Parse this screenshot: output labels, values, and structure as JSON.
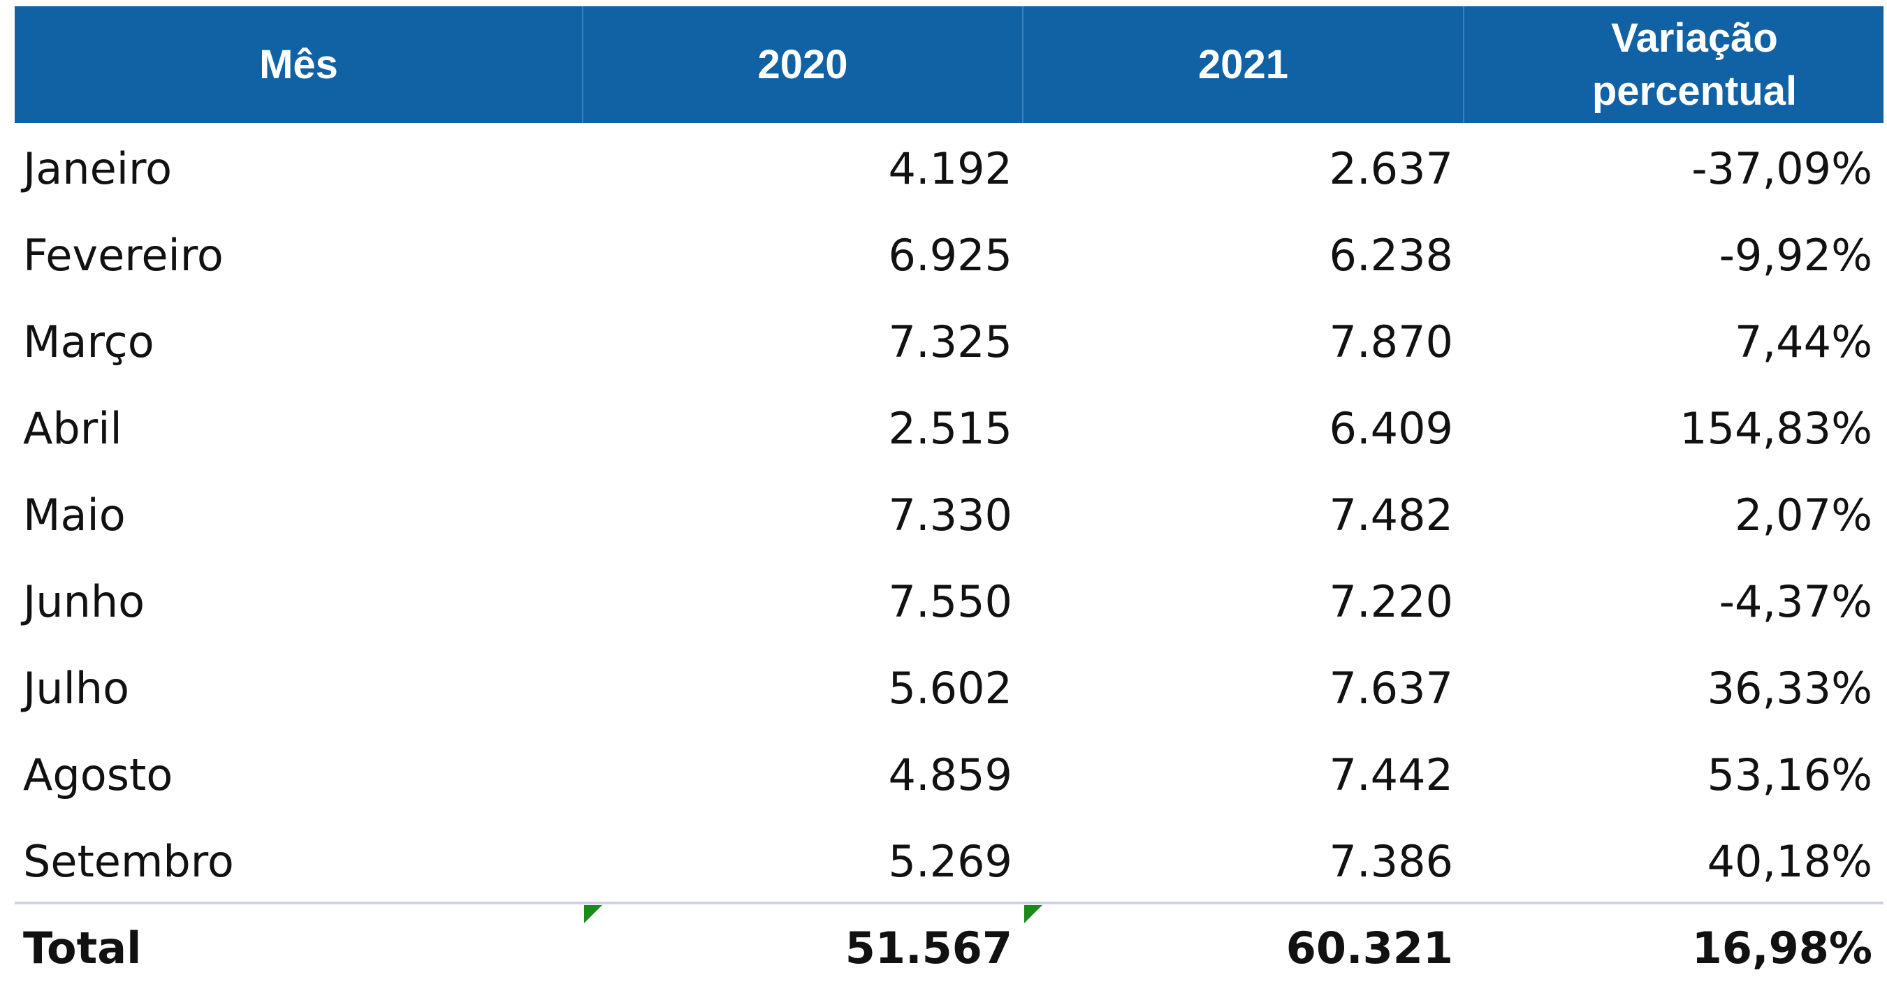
{
  "table": {
    "header": [
      "Mês",
      "2020",
      "2021",
      "Variação percentual"
    ],
    "rows": [
      [
        "Janeiro",
        "4.192",
        "2.637",
        "-37,09%"
      ],
      [
        "Fevereiro",
        "6.925",
        "6.238",
        "-9,92%"
      ],
      [
        "Março",
        "7.325",
        "7.870",
        "7,44%"
      ],
      [
        "Abril",
        "2.515",
        "6.409",
        "154,83%"
      ],
      [
        "Maio",
        "7.330",
        "7.482",
        "2,07%"
      ],
      [
        "Junho",
        "7.550",
        "7.220",
        "-4,37%"
      ],
      [
        "Julho",
        "5.602",
        "7.637",
        "36,33%"
      ],
      [
        "Agosto",
        "4.859",
        "7.442",
        "53,16%"
      ],
      [
        "Setembro",
        "5.269",
        "7.386",
        "40,18%"
      ]
    ],
    "total": [
      "Total",
      "51.567",
      "60.321",
      "16,98%"
    ]
  }
}
